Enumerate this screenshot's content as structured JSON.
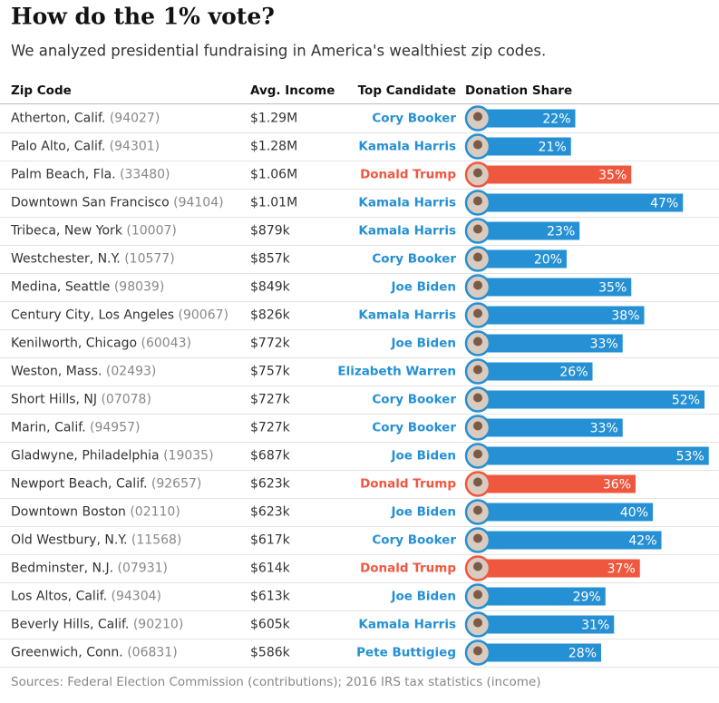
{
  "title": "How do the 1% vote?",
  "subtitle": "We analyzed presidential fundraising in America's wealthiest zip codes.",
  "columns": [
    "Zip Code",
    "Avg. Income",
    "Top Candidate",
    "Donation Share"
  ],
  "rows": [
    {
      "place": "Atherton, Calif.",
      "zip": "(94027)",
      "income": "$1.29M",
      "candidate": "Cory Booker",
      "share": 22,
      "share_label": "22%",
      "color": "#2590d3"
    },
    {
      "place": "Palo Alto, Calif.",
      "zip": "(94301)",
      "income": "$1.28M",
      "candidate": "Kamala Harris",
      "share": 21,
      "share_label": "21%",
      "color": "#2590d3"
    },
    {
      "place": "Palm Beach, Fla.",
      "zip": "(33480)",
      "income": "$1.06M",
      "candidate": "Donald Trump",
      "share": 35,
      "share_label": "35%",
      "color": "#f0573f"
    },
    {
      "place": "Downtown San Francisco",
      "zip": "(94104)",
      "income": "$1.01M",
      "candidate": "Kamala Harris",
      "share": 47,
      "share_label": "47%",
      "color": "#2590d3"
    },
    {
      "place": "Tribeca, New York",
      "zip": "(10007)",
      "income": "$879k",
      "candidate": "Kamala Harris",
      "share": 23,
      "share_label": "23%",
      "color": "#2590d3"
    },
    {
      "place": "Westchester, N.Y.",
      "zip": "(10577)",
      "income": "$857k",
      "candidate": "Cory Booker",
      "share": 20,
      "share_label": "20%",
      "color": "#2590d3"
    },
    {
      "place": "Medina, Seattle",
      "zip": "(98039)",
      "income": "$849k",
      "candidate": "Joe Biden",
      "share": 35,
      "share_label": "35%",
      "color": "#2590d3"
    },
    {
      "place": "Century City, Los Angeles",
      "zip": "(90067)",
      "income": "$826k",
      "candidate": "Kamala Harris",
      "share": 38,
      "share_label": "38%",
      "color": "#2590d3"
    },
    {
      "place": "Kenilworth, Chicago",
      "zip": "(60043)",
      "income": "$772k",
      "candidate": "Joe Biden",
      "share": 33,
      "share_label": "33%",
      "color": "#2590d3"
    },
    {
      "place": "Weston, Mass.",
      "zip": "(02493)",
      "income": "$757k",
      "candidate": "Elizabeth Warren",
      "share": 26,
      "share_label": "26%",
      "color": "#2590d3"
    },
    {
      "place": "Short Hills, NJ",
      "zip": "(07078)",
      "income": "$727k",
      "candidate": "Cory Booker",
      "share": 52,
      "share_label": "52%",
      "color": "#2590d3"
    },
    {
      "place": "Marin, Calif.",
      "zip": "(94957)",
      "income": "$727k",
      "candidate": "Cory Booker",
      "share": 33,
      "share_label": "33%",
      "color": "#2590d3"
    },
    {
      "place": "Gladwyne, Philadelphia",
      "zip": "(19035)",
      "income": "$687k",
      "candidate": "Joe Biden",
      "share": 53,
      "share_label": "53%",
      "color": "#2590d3"
    },
    {
      "place": "Newport Beach, Calif.",
      "zip": "(92657)",
      "income": "$623k",
      "candidate": "Donald Trump",
      "share": 36,
      "share_label": "36%",
      "color": "#f0573f"
    },
    {
      "place": "Downtown Boston",
      "zip": "(02110)",
      "income": "$623k",
      "candidate": "Joe Biden",
      "share": 40,
      "share_label": "40%",
      "color": "#2590d3"
    },
    {
      "place": "Old Westbury, N.Y.",
      "zip": "(11568)",
      "income": "$617k",
      "candidate": "Cory Booker",
      "share": 42,
      "share_label": "42%",
      "color": "#2590d3"
    },
    {
      "place": "Bedminster, N.J.",
      "zip": "(07931)",
      "income": "$614k",
      "candidate": "Donald Trump",
      "share": 37,
      "share_label": "37%",
      "color": "#f0573f"
    },
    {
      "place": "Los Altos, Calif.",
      "zip": "(94304)",
      "income": "$613k",
      "candidate": "Joe Biden",
      "share": 29,
      "share_label": "29%",
      "color": "#2590d3"
    },
    {
      "place": "Beverly Hills, Calif.",
      "zip": "(90210)",
      "income": "$605k",
      "candidate": "Kamala Harris",
      "share": 31,
      "share_label": "31%",
      "color": "#2590d3"
    },
    {
      "place": "Greenwich, Conn.",
      "zip": "(06831)",
      "income": "$586k",
      "candidate": "Pete Buttigieg",
      "share": 28,
      "share_label": "28%",
      "color": "#2590d3"
    }
  ],
  "source": "Sources: Federal Election Commission (contributions); 2016 IRS tax statistics (income)"
}
